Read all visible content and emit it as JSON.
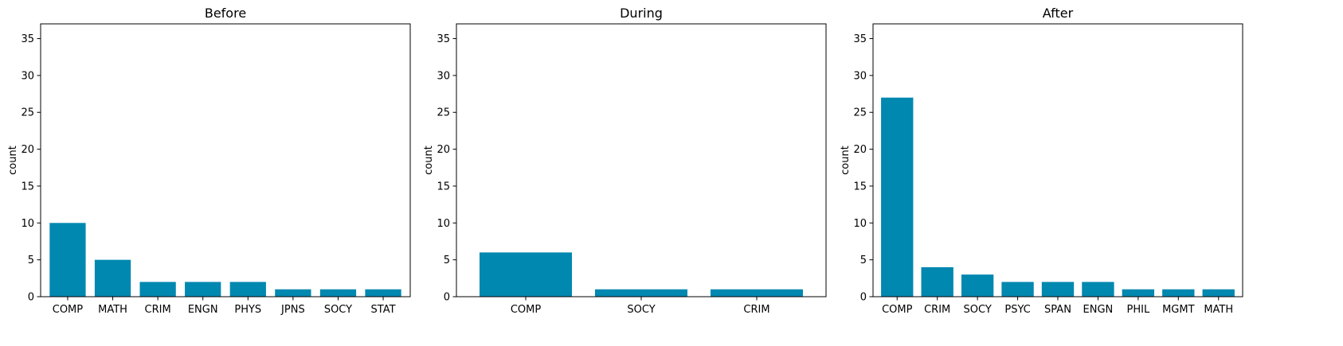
{
  "theme": {
    "bar_color": "#0088b0",
    "axis_color": "#000000",
    "background": "#ffffff"
  },
  "chart_data": [
    {
      "type": "bar",
      "title": "Before",
      "xlabel": "",
      "ylabel": "count",
      "ylim": [
        0,
        37
      ],
      "yticks": [
        0,
        5,
        10,
        15,
        20,
        25,
        30,
        35
      ],
      "grid": false,
      "categories": [
        "COMP",
        "MATH",
        "CRIM",
        "ENGN",
        "PHYS",
        "JPNS",
        "SOCY",
        "STAT"
      ],
      "values": [
        10,
        5,
        2,
        2,
        2,
        1,
        1,
        1
      ]
    },
    {
      "type": "bar",
      "title": "During",
      "xlabel": "",
      "ylabel": "count",
      "ylim": [
        0,
        37
      ],
      "yticks": [
        0,
        5,
        10,
        15,
        20,
        25,
        30,
        35
      ],
      "grid": false,
      "categories": [
        "COMP",
        "SOCY",
        "CRIM"
      ],
      "values": [
        6,
        1,
        1
      ]
    },
    {
      "type": "bar",
      "title": "After",
      "xlabel": "",
      "ylabel": "count",
      "ylim": [
        0,
        37
      ],
      "yticks": [
        0,
        5,
        10,
        15,
        20,
        25,
        30,
        35
      ],
      "grid": false,
      "categories": [
        "COMP",
        "CRIM",
        "SOCY",
        "PSYC",
        "SPAN",
        "ENGN",
        "PHIL",
        "MGMT",
        "MATH"
      ],
      "values": [
        27,
        4,
        3,
        2,
        2,
        2,
        1,
        1,
        1
      ]
    }
  ]
}
